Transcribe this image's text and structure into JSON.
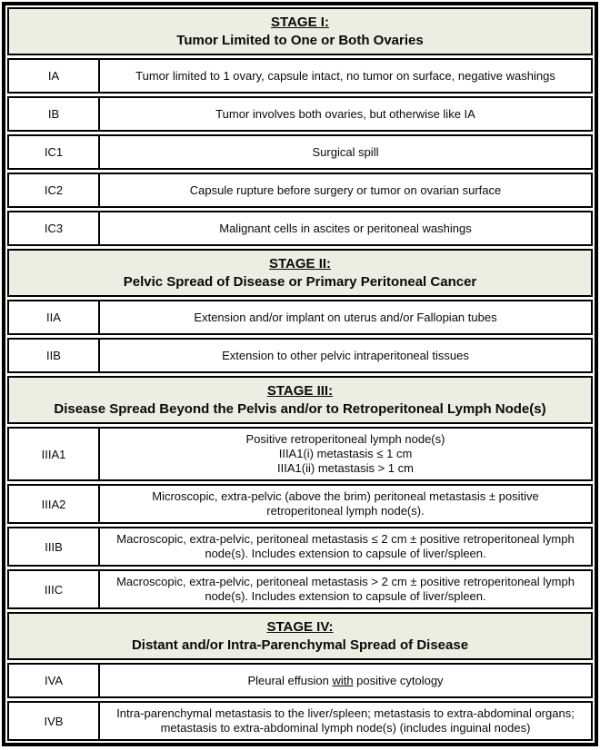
{
  "colors": {
    "header_bg": "#eeede1",
    "border": "#000000",
    "text": "#0a0a0a"
  },
  "sections": [
    {
      "stage_label": "STAGE I:",
      "stage_title": "Tumor Limited to One or Both Ovaries",
      "rows": [
        {
          "code": "IA",
          "description": "Tumor limited to 1 ovary, capsule intact, no tumor on surface, negative washings"
        },
        {
          "code": "IB",
          "description": "Tumor involves both ovaries, but otherwise like IA"
        },
        {
          "code": "IC1",
          "description": "Surgical spill"
        },
        {
          "code": "IC2",
          "description": "Capsule rupture before surgery or tumor on ovarian surface"
        },
        {
          "code": "IC3",
          "description": "Malignant cells in ascites or peritoneal washings"
        }
      ]
    },
    {
      "stage_label": "STAGE II:",
      "stage_title": "Pelvic Spread of Disease or Primary Peritoneal Cancer",
      "rows": [
        {
          "code": "IIA",
          "description": "Extension and/or implant on uterus and/or Fallopian tubes"
        },
        {
          "code": "IIB",
          "description": "Extension to other pelvic intraperitoneal tissues"
        }
      ]
    },
    {
      "stage_label": "STAGE III:",
      "stage_title": "Disease Spread Beyond the Pelvis and/or to Retroperitoneal Lymph Node(s)",
      "rows": [
        {
          "code": "IIIA1",
          "description_lines": [
            "Positive retroperitoneal lymph node(s)",
            "IIIA1(i) metastasis ≤ 1 cm",
            "IIIA1(ii) metastasis > 1 cm"
          ]
        },
        {
          "code": "IIIA2",
          "description": "Microscopic, extra-pelvic (above the brim) peritoneal metastasis ± positive retroperitoneal lymph node(s)."
        },
        {
          "code": "IIIB",
          "description": "Macroscopic, extra-pelvic, peritoneal metastasis ≤ 2 cm ± positive retroperitoneal lymph node(s). Includes extension to capsule of liver/spleen."
        },
        {
          "code": "IIIC",
          "description": "Macroscopic, extra-pelvic, peritoneal metastasis > 2 cm ± positive retroperitoneal lymph node(s). Includes extension to capsule of liver/spleen."
        }
      ]
    },
    {
      "stage_label": "STAGE IV:",
      "stage_title": "Distant and/or Intra-Parenchymal Spread of Disease",
      "rows": [
        {
          "code": "IVA",
          "description_segments": [
            {
              "text": "Pleural effusion "
            },
            {
              "text": "with",
              "underline": true
            },
            {
              "text": " positive cytology"
            }
          ]
        },
        {
          "code": "IVB",
          "description": "Intra-parenchymal metastasis to the liver/spleen; metastasis to extra-abdominal organs; metastasis to extra-abdominal lymph node(s) (includes inguinal nodes)"
        }
      ]
    }
  ]
}
